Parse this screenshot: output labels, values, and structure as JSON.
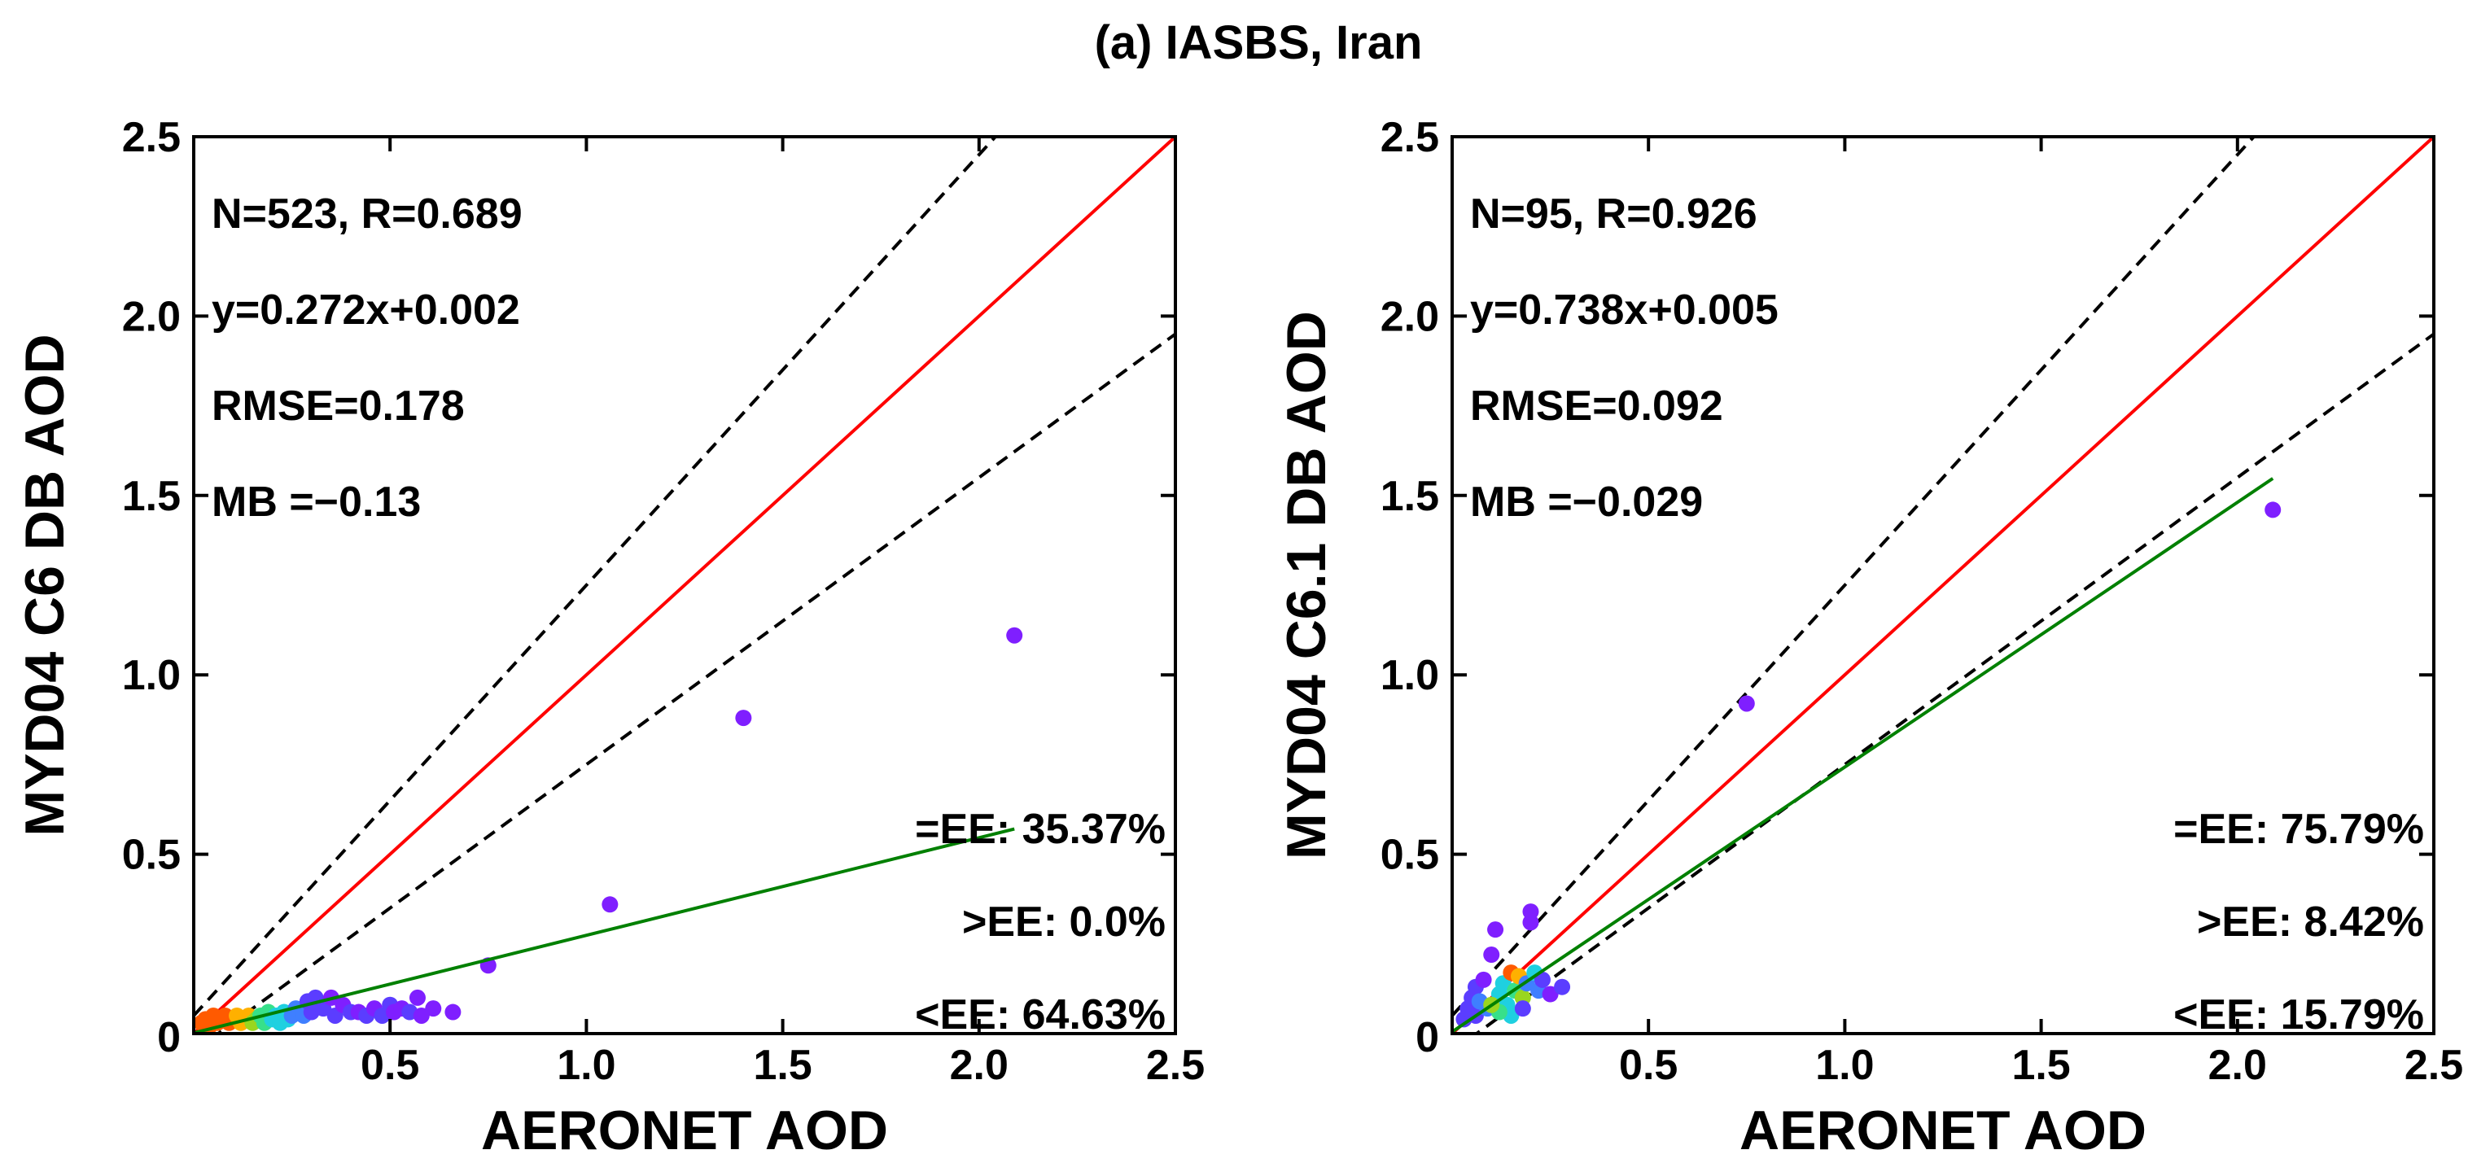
{
  "figure": {
    "title": "(a) IASBS, Iran"
  },
  "colors": {
    "one_to_one_line": "#ff0000",
    "ee_envelope": "#000000",
    "regression_line": "#008000",
    "point_palette": [
      "#7f1fff",
      "#5b3dff",
      "#3f7fff",
      "#1fd0e0",
      "#37e08a",
      "#9ad61f",
      "#ffb000",
      "#ff5a00"
    ]
  },
  "chart_data": [
    {
      "type": "scatter",
      "panel": "left",
      "xlabel": "AERONET AOD",
      "ylabel": "MYD04 C6 DB AOD",
      "xlim": [
        0,
        2.5
      ],
      "ylim": [
        0,
        2.5
      ],
      "x_ticks": [
        "0.5",
        "1.0",
        "1.5",
        "2.0",
        "2.5"
      ],
      "y_ticks": [
        "0.5",
        "1.0",
        "1.5",
        "2.0",
        "2.5"
      ],
      "origin_label": "0",
      "stats": [
        "N=523, R=0.689",
        "y=0.272x+0.002",
        "RMSE=0.178",
        "MB =−0.13"
      ],
      "ee_stats": [
        "=EE: 35.37%",
        ">EE: 0.0%",
        "<EE: 64.63%"
      ],
      "regression": {
        "slope": 0.272,
        "intercept": 0.002,
        "x_range": [
          0,
          2.09
        ]
      },
      "one_to_one": true,
      "ee_envelope": {
        "abs": 0.05,
        "rel": 0.2
      },
      "points": [
        [
          0.02,
          0.03,
          7
        ],
        [
          0.03,
          0.04,
          7
        ],
        [
          0.04,
          0.02,
          7
        ],
        [
          0.05,
          0.05,
          7
        ],
        [
          0.06,
          0.03,
          7
        ],
        [
          0.07,
          0.04,
          7
        ],
        [
          0.08,
          0.05,
          7
        ],
        [
          0.09,
          0.03,
          7
        ],
        [
          0.1,
          0.04,
          7
        ],
        [
          0.11,
          0.05,
          6
        ],
        [
          0.12,
          0.03,
          6
        ],
        [
          0.13,
          0.04,
          6
        ],
        [
          0.14,
          0.05,
          6
        ],
        [
          0.15,
          0.03,
          5
        ],
        [
          0.16,
          0.04,
          5
        ],
        [
          0.17,
          0.05,
          4
        ],
        [
          0.18,
          0.03,
          4
        ],
        [
          0.19,
          0.06,
          4
        ],
        [
          0.2,
          0.04,
          3
        ],
        [
          0.21,
          0.05,
          3
        ],
        [
          0.22,
          0.03,
          3
        ],
        [
          0.23,
          0.06,
          3
        ],
        [
          0.24,
          0.04,
          3
        ],
        [
          0.25,
          0.05,
          2
        ],
        [
          0.26,
          0.07,
          2
        ],
        [
          0.28,
          0.05,
          2
        ],
        [
          0.29,
          0.09,
          1
        ],
        [
          0.3,
          0.06,
          1
        ],
        [
          0.31,
          0.1,
          1
        ],
        [
          0.33,
          0.07,
          1
        ],
        [
          0.35,
          0.1,
          0
        ],
        [
          0.36,
          0.05,
          1
        ],
        [
          0.38,
          0.08,
          0
        ],
        [
          0.4,
          0.06,
          1
        ],
        [
          0.42,
          0.06,
          0
        ],
        [
          0.44,
          0.05,
          1
        ],
        [
          0.46,
          0.07,
          0
        ],
        [
          0.48,
          0.05,
          1
        ],
        [
          0.5,
          0.08,
          1
        ],
        [
          0.51,
          0.06,
          0
        ],
        [
          0.53,
          0.07,
          0
        ],
        [
          0.55,
          0.06,
          1
        ],
        [
          0.57,
          0.1,
          0
        ],
        [
          0.58,
          0.05,
          0
        ],
        [
          0.61,
          0.07,
          0
        ],
        [
          0.66,
          0.06,
          0
        ],
        [
          0.75,
          0.19,
          0
        ],
        [
          1.06,
          0.36,
          0
        ],
        [
          1.4,
          0.88,
          0
        ],
        [
          2.09,
          1.11,
          0
        ]
      ]
    },
    {
      "type": "scatter",
      "panel": "right",
      "xlabel": "AERONET AOD",
      "ylabel": "MYD04 C6.1 DB AOD",
      "xlim": [
        0,
        2.5
      ],
      "ylim": [
        0,
        2.5
      ],
      "x_ticks": [
        "0.5",
        "1.0",
        "1.5",
        "2.0",
        "2.5"
      ],
      "y_ticks": [
        "0.5",
        "1.0",
        "1.5",
        "2.0",
        "2.5"
      ],
      "origin_label": "0",
      "stats": [
        "N=95, R=0.926",
        "y=0.738x+0.005",
        "RMSE=0.092",
        "MB =−0.029"
      ],
      "ee_stats": [
        "=EE: 75.79%",
        ">EE: 8.42%",
        "<EE: 15.79%"
      ],
      "regression": {
        "slope": 0.738,
        "intercept": 0.005,
        "x_range": [
          0,
          2.09
        ]
      },
      "one_to_one": true,
      "ee_envelope": {
        "abs": 0.05,
        "rel": 0.2
      },
      "points": [
        [
          0.03,
          0.04,
          1
        ],
        [
          0.04,
          0.07,
          1
        ],
        [
          0.05,
          0.1,
          1
        ],
        [
          0.06,
          0.05,
          1
        ],
        [
          0.06,
          0.13,
          1
        ],
        [
          0.07,
          0.09,
          2
        ],
        [
          0.08,
          0.15,
          0
        ],
        [
          0.09,
          0.07,
          2
        ],
        [
          0.1,
          0.22,
          0
        ],
        [
          0.11,
          0.29,
          0
        ],
        [
          0.12,
          0.11,
          3
        ],
        [
          0.13,
          0.14,
          3
        ],
        [
          0.14,
          0.08,
          3
        ],
        [
          0.15,
          0.17,
          7
        ],
        [
          0.16,
          0.12,
          4
        ],
        [
          0.17,
          0.16,
          6
        ],
        [
          0.18,
          0.1,
          5
        ],
        [
          0.19,
          0.14,
          2
        ],
        [
          0.2,
          0.31,
          0
        ],
        [
          0.2,
          0.34,
          0
        ],
        [
          0.21,
          0.17,
          3
        ],
        [
          0.22,
          0.12,
          2
        ],
        [
          0.23,
          0.15,
          1
        ],
        [
          0.25,
          0.11,
          0
        ],
        [
          0.28,
          0.13,
          1
        ],
        [
          0.15,
          0.05,
          3
        ],
        [
          0.12,
          0.06,
          4
        ],
        [
          0.1,
          0.08,
          5
        ],
        [
          0.18,
          0.07,
          1
        ],
        [
          0.75,
          0.92,
          0
        ],
        [
          2.09,
          1.46,
          0
        ]
      ]
    }
  ]
}
